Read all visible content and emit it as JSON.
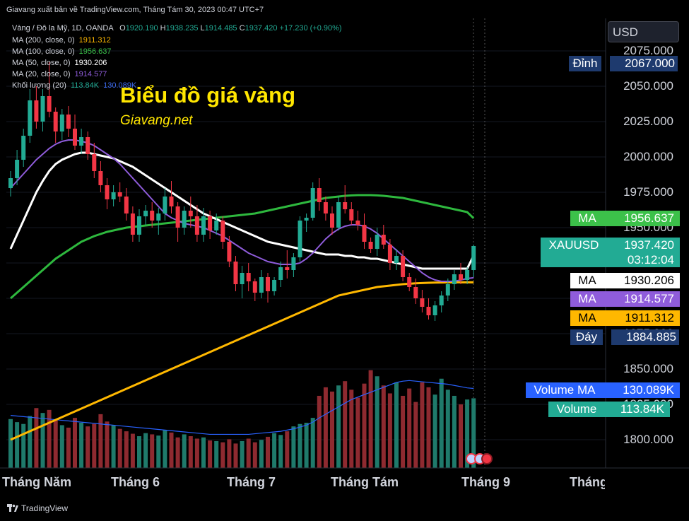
{
  "header": {
    "publisher_line": "Giavang xuất bản về TradingView.com, Tháng Tám 30, 2023 00:47 UTC+7"
  },
  "legend": {
    "symbol": "Vàng / Đô la Mỹ, 1D, OANDA",
    "ohlc": {
      "o_label": "O",
      "o": "1920.190",
      "h_label": "H",
      "h": "1938.235",
      "l_label": "L",
      "l": "1914.485",
      "c_label": "C",
      "c": "1937.420",
      "change": "+17.230 (+0.90%)"
    },
    "indicators": [
      {
        "label": "MA (200, close, 0)",
        "value": "1911.312",
        "color": "#ffb800"
      },
      {
        "label": "MA (100, close, 0)",
        "value": "1956.637",
        "color": "#3cc14a"
      },
      {
        "label": "MA (50, close, 0)",
        "value": "1930.206",
        "color": "#ffffff"
      },
      {
        "label": "MA (20, close, 0)",
        "value": "1914.577",
        "color": "#8f5cdb"
      },
      {
        "label": "Khối lượng (20)",
        "value": "113.84K",
        "value2": "130.089K",
        "color": "#22ab94",
        "color2": "#3d6bf0"
      }
    ]
  },
  "overlay": {
    "title": "Biểu đồ giá vàng",
    "subtitle": "Giavang.net"
  },
  "price_scale": {
    "currency": "USD",
    "ticks": [
      "2075.000",
      "2050.000",
      "2025.000",
      "2000.000",
      "1975.000",
      "1950.000",
      "1925.000",
      "1900.000",
      "1875.000",
      "1850.000",
      "1825.000",
      "1800.000"
    ],
    "tick_values": [
      2075,
      2050,
      2025,
      2000,
      1975,
      1950,
      1925,
      1900,
      1875,
      1850,
      1825,
      1800
    ]
  },
  "badges": {
    "high": {
      "label": "Đỉnh",
      "value": "2067.000",
      "bg": "#1e3a6e",
      "fg": "#ffffff"
    },
    "ma100": {
      "label": "MA",
      "value": "1956.637",
      "bg": "#3cc14a",
      "fg": "#ffffff"
    },
    "symbol": {
      "label": "XAUUSD",
      "value": "1937.420",
      "countdown": "03:12:04",
      "bg": "#22ab94",
      "fg": "#ffffff"
    },
    "ma50": {
      "label": "MA",
      "value": "1930.206",
      "bg": "#ffffff",
      "fg": "#000000"
    },
    "ma20": {
      "label": "MA",
      "value": "1914.577",
      "bg": "#8f5cdb",
      "fg": "#ffffff"
    },
    "ma200": {
      "label": "MA",
      "value": "1911.312",
      "bg": "#ffb800",
      "fg": "#000000"
    },
    "low": {
      "label": "Đáy",
      "value": "1884.885",
      "bg": "#1e3a6e",
      "fg": "#ffffff"
    },
    "volume_ma": {
      "label": "Volume MA",
      "value": "130.089K",
      "bg": "#2962ff",
      "fg": "#ffffff"
    },
    "volume": {
      "label": "Volume",
      "value": "113.84K",
      "bg": "#22ab94",
      "fg": "#ffffff"
    }
  },
  "time_scale": {
    "labels": [
      "Tháng Năm",
      "Tháng 6",
      "Tháng 7",
      "Tháng Tám",
      "Tháng 9",
      "Tháng"
    ]
  },
  "footer": {
    "brand": "TradingView"
  },
  "colors": {
    "up": "#22ab94",
    "down": "#f23645",
    "background": "#000000"
  },
  "chart_data": {
    "type": "candlestick",
    "symbol": "XAUUSD",
    "ylim": [
      1780,
      2085
    ],
    "candles": [
      [
        1978,
        1990,
        1972,
        1985
      ],
      [
        1985,
        2005,
        1980,
        1998
      ],
      [
        1998,
        2020,
        1993,
        2015
      ],
      [
        2015,
        2048,
        2010,
        2040
      ],
      [
        2040,
        2050,
        2020,
        2025
      ],
      [
        2025,
        2048,
        2018,
        2043
      ],
      [
        2043,
        2067,
        2028,
        2032
      ],
      [
        2032,
        2035,
        2010,
        2018
      ],
      [
        2018,
        2034,
        2012,
        2030
      ],
      [
        2030,
        2036,
        2014,
        2020
      ],
      [
        2020,
        2030,
        2005,
        2008
      ],
      [
        2008,
        2020,
        2002,
        2014
      ],
      [
        2014,
        2018,
        1998,
        2002
      ],
      [
        2002,
        2010,
        1985,
        1990
      ],
      [
        1990,
        1997,
        1975,
        1980
      ],
      [
        1980,
        1985,
        1963,
        1970
      ],
      [
        1970,
        1980,
        1965,
        1975
      ],
      [
        1975,
        1982,
        1968,
        1972
      ],
      [
        1972,
        1978,
        1955,
        1960
      ],
      [
        1960,
        1965,
        1940,
        1945
      ],
      [
        1945,
        1963,
        1940,
        1958
      ],
      [
        1958,
        1966,
        1952,
        1962
      ],
      [
        1962,
        1968,
        1950,
        1955
      ],
      [
        1955,
        1964,
        1945,
        1960
      ],
      [
        1960,
        1978,
        1955,
        1972
      ],
      [
        1972,
        1983,
        1960,
        1965
      ],
      [
        1965,
        1968,
        1940,
        1950
      ],
      [
        1950,
        1965,
        1945,
        1962
      ],
      [
        1962,
        1972,
        1950,
        1958
      ],
      [
        1958,
        1966,
        1940,
        1945
      ],
      [
        1945,
        1964,
        1940,
        1958
      ],
      [
        1958,
        1962,
        1942,
        1948
      ],
      [
        1948,
        1960,
        1945,
        1955
      ],
      [
        1955,
        1958,
        1935,
        1940
      ],
      [
        1940,
        1944,
        1922,
        1926
      ],
      [
        1926,
        1930,
        1905,
        1910
      ],
      [
        1910,
        1923,
        1900,
        1918
      ],
      [
        1918,
        1925,
        1905,
        1912
      ],
      [
        1912,
        1914,
        1898,
        1904
      ],
      [
        1904,
        1920,
        1900,
        1915
      ],
      [
        1915,
        1918,
        1897,
        1905
      ],
      [
        1905,
        1915,
        1902,
        1913
      ],
      [
        1913,
        1926,
        1908,
        1922
      ],
      [
        1922,
        1934,
        1914,
        1920
      ],
      [
        1920,
        1932,
        1915,
        1929
      ],
      [
        1929,
        1958,
        1926,
        1955
      ],
      [
        1955,
        1960,
        1947,
        1957
      ],
      [
        1957,
        1982,
        1955,
        1978
      ],
      [
        1978,
        1985,
        1962,
        1968
      ],
      [
        1968,
        1972,
        1955,
        1960
      ],
      [
        1960,
        1965,
        1945,
        1950
      ],
      [
        1950,
        1972,
        1948,
        1968
      ],
      [
        1968,
        1980,
        1960,
        1963
      ],
      [
        1963,
        1968,
        1952,
        1955
      ],
      [
        1955,
        1962,
        1948,
        1952
      ],
      [
        1952,
        1960,
        1935,
        1940
      ],
      [
        1940,
        1943,
        1932,
        1935
      ],
      [
        1935,
        1950,
        1930,
        1945
      ],
      [
        1945,
        1952,
        1935,
        1938
      ],
      [
        1938,
        1942,
        1920,
        1925
      ],
      [
        1925,
        1935,
        1920,
        1930
      ],
      [
        1930,
        1934,
        1912,
        1915
      ],
      [
        1915,
        1918,
        1905,
        1908
      ],
      [
        1908,
        1914,
        1896,
        1900
      ],
      [
        1900,
        1906,
        1890,
        1894
      ],
      [
        1894,
        1900,
        1885,
        1888
      ],
      [
        1888,
        1898,
        1884,
        1895
      ],
      [
        1895,
        1905,
        1890,
        1902
      ],
      [
        1902,
        1914,
        1898,
        1910
      ],
      [
        1910,
        1920,
        1906,
        1917
      ],
      [
        1917,
        1925,
        1910,
        1913
      ],
      [
        1913,
        1922,
        1910,
        1920
      ],
      [
        1920,
        1938,
        1915,
        1937
      ]
    ],
    "volume_max": 185,
    "volume": [
      80,
      75,
      72,
      85,
      98,
      90,
      95,
      78,
      70,
      66,
      82,
      74,
      68,
      72,
      88,
      76,
      70,
      64,
      60,
      56,
      52,
      57,
      55,
      53,
      62,
      58,
      50,
      55,
      52,
      48,
      50,
      45,
      44,
      42,
      47,
      40,
      44,
      48,
      42,
      46,
      51,
      57,
      54,
      60,
      68,
      72,
      74,
      82,
      118,
      132,
      125,
      135,
      142,
      128,
      115,
      138,
      160,
      150,
      135,
      122,
      140,
      118,
      130,
      108,
      140,
      132,
      120,
      146,
      128,
      118,
      104,
      112,
      114
    ],
    "ma200": [
      1800,
      1802,
      1804,
      1806,
      1808,
      1810,
      1812,
      1814,
      1816,
      1818,
      1820,
      1822,
      1824,
      1826,
      1828,
      1830,
      1832,
      1834,
      1836,
      1838,
      1840,
      1842,
      1844,
      1846,
      1848,
      1850,
      1852,
      1854,
      1856,
      1858,
      1860,
      1862,
      1864,
      1866,
      1868,
      1870,
      1872,
      1874,
      1876,
      1878,
      1880,
      1882,
      1884,
      1886,
      1888,
      1890,
      1892,
      1894,
      1896,
      1898,
      1900,
      1902,
      1903,
      1904,
      1905,
      1906,
      1907,
      1908,
      1908.5,
      1909,
      1909.5,
      1910,
      1910.3,
      1910.6,
      1910.8,
      1911,
      1911.1,
      1911.2,
      1911.3,
      1911.31,
      1911.31,
      1911.31,
      1911.312
    ],
    "ma100": [
      1900,
      1904,
      1908,
      1912,
      1916,
      1920,
      1924,
      1928,
      1931,
      1934,
      1937,
      1940,
      1942,
      1944,
      1945.5,
      1947,
      1948,
      1949,
      1950,
      1950.5,
      1951,
      1951.5,
      1952,
      1952.5,
      1953,
      1953.5,
      1954,
      1954.5,
      1955,
      1955.5,
      1956,
      1956.5,
      1957,
      1957.5,
      1958,
      1958.5,
      1959,
      1959.5,
      1960,
      1961,
      1962,
      1963,
      1964,
      1965,
      1966,
      1967,
      1968,
      1969,
      1970,
      1971,
      1971.5,
      1972,
      1972.5,
      1972.8,
      1973,
      1973,
      1973,
      1972.8,
      1972.5,
      1972,
      1971.5,
      1971,
      1970,
      1969,
      1968,
      1967,
      1966,
      1965,
      1964,
      1963,
      1962,
      1961,
      1956.637
    ],
    "ma50": [
      1935,
      1945,
      1955,
      1965,
      1975,
      1983,
      1990,
      1995,
      1998,
      2000,
      2002,
      2003,
      2003,
      2002,
      2001,
      2000,
      1999,
      1997,
      1995,
      1993,
      1990,
      1987,
      1984,
      1981,
      1978,
      1975,
      1972,
      1969,
      1966,
      1963,
      1960,
      1958,
      1956,
      1954,
      1952,
      1950,
      1948,
      1946,
      1944,
      1942,
      1940,
      1939,
      1938,
      1937,
      1936,
      1935,
      1934,
      1933,
      1932,
      1931,
      1931,
      1931,
      1930,
      1930,
      1929,
      1929,
      1928,
      1928,
      1927,
      1926,
      1925,
      1924,
      1923,
      1922,
      1921,
      1921,
      1921,
      1921,
      1921,
      1921,
      1921,
      1921,
      1930.206
    ],
    "ma20": [
      1978,
      1983,
      1988,
      1993,
      1998,
      2002,
      2006,
      2009,
      2011,
      2012,
      2012,
      2011,
      2010,
      2008,
      2005,
      2002,
      1999,
      1995,
      1990,
      1985,
      1980,
      1975,
      1970,
      1965,
      1960,
      1957,
      1955,
      1953,
      1952,
      1951,
      1950,
      1948,
      1946,
      1944,
      1941,
      1938,
      1935,
      1932,
      1930,
      1928,
      1926,
      1925,
      1924,
      1924,
      1924,
      1925,
      1928,
      1932,
      1937,
      1942,
      1946,
      1949,
      1951,
      1952,
      1952,
      1951,
      1949,
      1946,
      1942,
      1938,
      1934,
      1930,
      1926,
      1922,
      1918,
      1915,
      1913,
      1912,
      1912,
      1912,
      1913,
      1914,
      1914.577
    ],
    "volume_ma": [
      86,
      85,
      84,
      83,
      82,
      81,
      80,
      79,
      78,
      77,
      76,
      75,
      74,
      73,
      72,
      71,
      70,
      69,
      68,
      67,
      66,
      65,
      64,
      63,
      62,
      61,
      60,
      59,
      58,
      57,
      56,
      55,
      55,
      55,
      55,
      55,
      55,
      55,
      56,
      57,
      58,
      59,
      60,
      62,
      64,
      67,
      70,
      75,
      82,
      88,
      94,
      100,
      106,
      112,
      116,
      120,
      124,
      128,
      132,
      136,
      140,
      142,
      143,
      142,
      141,
      140,
      139,
      138,
      137,
      135,
      133,
      131,
      130.089
    ]
  }
}
